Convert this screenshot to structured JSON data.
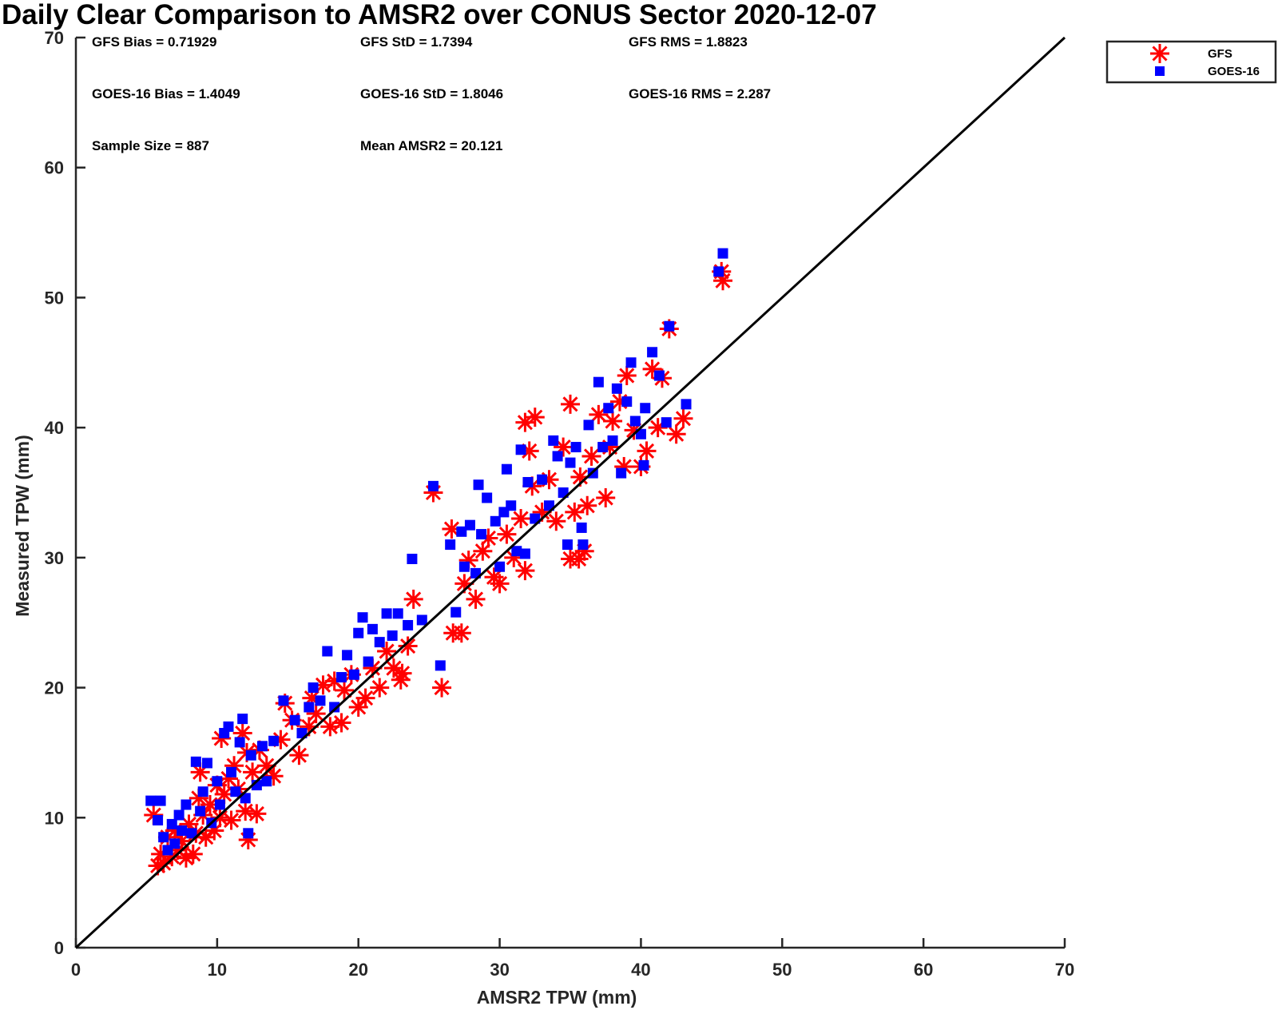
{
  "chart_data": {
    "type": "scatter",
    "title": "Daily Clear Comparison to AMSR2 over CONUS Sector 2020-12-07",
    "xlabel": "AMSR2 TPW (mm)",
    "ylabel": "Measured TPW (mm)",
    "xlim": [
      0,
      70
    ],
    "ylim": [
      0,
      70
    ],
    "xticks": [
      "0",
      "10",
      "20",
      "30",
      "40",
      "50",
      "60",
      "70"
    ],
    "yticks": [
      "0",
      "10",
      "20",
      "30",
      "40",
      "50",
      "60",
      "70"
    ],
    "grid": false,
    "legend_position": "outside top-right",
    "stats": [
      "GFS Bias = 0.71929",
      "GFS StD = 1.7394",
      "GFS RMS = 1.8823",
      "GOES-16 Bias = 1.4049",
      "GOES-16 StD = 1.8046",
      "GOES-16 RMS = 2.287",
      "Sample Size = 887",
      "Mean AMSR2 = 20.121"
    ],
    "reference_line": {
      "x": [
        0,
        70
      ],
      "y": [
        0,
        70
      ],
      "color": "#000000"
    },
    "series": [
      {
        "name": "GFS",
        "marker": "asterisk",
        "color": "#ff0000",
        "points": [
          [
            5.5,
            10.2
          ],
          [
            5.8,
            6.3
          ],
          [
            6.0,
            7.2
          ],
          [
            6.2,
            6.5
          ],
          [
            6.5,
            8.5
          ],
          [
            6.8,
            7.0
          ],
          [
            7.0,
            9.0
          ],
          [
            7.2,
            7.5
          ],
          [
            7.5,
            8.2
          ],
          [
            7.8,
            6.9
          ],
          [
            8.0,
            9.5
          ],
          [
            8.3,
            7.2
          ],
          [
            8.5,
            8.8
          ],
          [
            8.7,
            11.5
          ],
          [
            8.8,
            13.5
          ],
          [
            9.0,
            10.2
          ],
          [
            9.2,
            8.5
          ],
          [
            9.5,
            11.0
          ],
          [
            9.8,
            9.0
          ],
          [
            10.0,
            12.5
          ],
          [
            10.2,
            10.0
          ],
          [
            10.3,
            16.1
          ],
          [
            10.5,
            11.8
          ],
          [
            10.8,
            13.0
          ],
          [
            11.0,
            9.8
          ],
          [
            11.2,
            14.0
          ],
          [
            11.5,
            12.2
          ],
          [
            11.8,
            16.5
          ],
          [
            12.0,
            10.5
          ],
          [
            12.1,
            15.0
          ],
          [
            12.2,
            8.3
          ],
          [
            12.5,
            13.5
          ],
          [
            12.8,
            10.3
          ],
          [
            13.0,
            15.2
          ],
          [
            13.5,
            14.0
          ],
          [
            14.0,
            13.2
          ],
          [
            14.5,
            16.0
          ],
          [
            14.8,
            18.8
          ],
          [
            15.3,
            17.5
          ],
          [
            15.8,
            14.8
          ],
          [
            16.5,
            17.0
          ],
          [
            16.7,
            19.2
          ],
          [
            17.0,
            18.0
          ],
          [
            17.5,
            20.2
          ],
          [
            18.0,
            17.0
          ],
          [
            18.3,
            20.5
          ],
          [
            18.8,
            17.3
          ],
          [
            19.0,
            19.8
          ],
          [
            19.5,
            21.0
          ],
          [
            20.0,
            18.5
          ],
          [
            20.5,
            19.2
          ],
          [
            21.0,
            21.5
          ],
          [
            21.5,
            20.0
          ],
          [
            22.0,
            22.8
          ],
          [
            22.5,
            21.5
          ],
          [
            23.0,
            20.6
          ],
          [
            23.1,
            21.1
          ],
          [
            23.5,
            23.2
          ],
          [
            23.9,
            26.8
          ],
          [
            25.3,
            35.0
          ],
          [
            25.9,
            20.0
          ],
          [
            26.6,
            32.2
          ],
          [
            26.7,
            24.2
          ],
          [
            27.3,
            24.2
          ],
          [
            27.5,
            28.0
          ],
          [
            27.8,
            29.8
          ],
          [
            28.3,
            26.8
          ],
          [
            28.8,
            30.5
          ],
          [
            29.2,
            31.5
          ],
          [
            29.6,
            28.5
          ],
          [
            30.0,
            28.0
          ],
          [
            30.5,
            31.8
          ],
          [
            31.0,
            30.0
          ],
          [
            31.5,
            33.0
          ],
          [
            31.8,
            29.0
          ],
          [
            31.8,
            40.4
          ],
          [
            32.1,
            38.2
          ],
          [
            32.3,
            35.5
          ],
          [
            32.5,
            40.8
          ],
          [
            33.0,
            33.5
          ],
          [
            33.5,
            36.0
          ],
          [
            34.0,
            32.8
          ],
          [
            34.5,
            38.5
          ],
          [
            35.0,
            29.9
          ],
          [
            35.0,
            41.8
          ],
          [
            35.3,
            33.5
          ],
          [
            35.6,
            29.9
          ],
          [
            35.7,
            36.2
          ],
          [
            36.0,
            30.5
          ],
          [
            36.2,
            34.0
          ],
          [
            36.5,
            37.8
          ],
          [
            37.0,
            41.0
          ],
          [
            37.5,
            34.6
          ],
          [
            37.8,
            38.5
          ],
          [
            38.0,
            40.5
          ],
          [
            38.5,
            42.0
          ],
          [
            38.8,
            37.0
          ],
          [
            39.0,
            44.0
          ],
          [
            39.5,
            39.8
          ],
          [
            40.0,
            37.0
          ],
          [
            40.4,
            38.2
          ],
          [
            40.8,
            44.5
          ],
          [
            41.2,
            40.0
          ],
          [
            41.5,
            43.8
          ],
          [
            42.0,
            47.6
          ],
          [
            42.5,
            39.5
          ],
          [
            43.0,
            40.7
          ],
          [
            45.7,
            52.0
          ],
          [
            45.8,
            51.3
          ]
        ]
      },
      {
        "name": "GOES-16",
        "marker": "square",
        "color": "#0000ff",
        "points": [
          [
            5.3,
            11.3
          ],
          [
            5.8,
            9.8
          ],
          [
            6.0,
            11.3
          ],
          [
            6.2,
            8.5
          ],
          [
            6.5,
            7.5
          ],
          [
            6.8,
            9.5
          ],
          [
            7.0,
            8.0
          ],
          [
            7.3,
            10.2
          ],
          [
            7.5,
            9.0
          ],
          [
            7.8,
            11.0
          ],
          [
            8.2,
            8.8
          ],
          [
            8.5,
            14.3
          ],
          [
            8.8,
            10.5
          ],
          [
            9.0,
            12.0
          ],
          [
            9.3,
            14.2
          ],
          [
            9.6,
            9.6
          ],
          [
            10.0,
            12.8
          ],
          [
            10.2,
            11.0
          ],
          [
            10.5,
            16.5
          ],
          [
            10.8,
            17.0
          ],
          [
            11.0,
            13.5
          ],
          [
            11.3,
            12.0
          ],
          [
            11.6,
            15.8
          ],
          [
            11.8,
            17.6
          ],
          [
            12.0,
            11.5
          ],
          [
            12.2,
            8.8
          ],
          [
            12.4,
            14.8
          ],
          [
            12.8,
            12.5
          ],
          [
            13.2,
            15.5
          ],
          [
            13.5,
            12.8
          ],
          [
            14.0,
            15.9
          ],
          [
            14.7,
            19.0
          ],
          [
            15.5,
            17.5
          ],
          [
            16.0,
            16.5
          ],
          [
            16.5,
            18.5
          ],
          [
            16.8,
            20.0
          ],
          [
            17.3,
            19.0
          ],
          [
            17.8,
            22.8
          ],
          [
            18.3,
            18.5
          ],
          [
            18.8,
            20.8
          ],
          [
            19.2,
            22.5
          ],
          [
            19.7,
            21.0
          ],
          [
            20.0,
            24.2
          ],
          [
            20.3,
            25.4
          ],
          [
            20.7,
            22.0
          ],
          [
            21.0,
            24.5
          ],
          [
            21.5,
            23.5
          ],
          [
            22.0,
            25.7
          ],
          [
            22.4,
            24.0
          ],
          [
            22.8,
            25.7
          ],
          [
            23.5,
            24.8
          ],
          [
            23.8,
            29.9
          ],
          [
            24.5,
            25.2
          ],
          [
            25.3,
            35.5
          ],
          [
            25.8,
            21.7
          ],
          [
            26.5,
            31.0
          ],
          [
            26.9,
            25.8
          ],
          [
            27.3,
            32.0
          ],
          [
            27.5,
            29.3
          ],
          [
            27.9,
            32.5
          ],
          [
            28.3,
            28.8
          ],
          [
            28.5,
            35.6
          ],
          [
            28.7,
            31.8
          ],
          [
            29.1,
            34.6
          ],
          [
            29.7,
            32.8
          ],
          [
            30.0,
            29.3
          ],
          [
            30.3,
            33.5
          ],
          [
            30.5,
            36.8
          ],
          [
            30.8,
            34.0
          ],
          [
            31.2,
            30.5
          ],
          [
            31.5,
            38.3
          ],
          [
            31.8,
            30.3
          ],
          [
            32.0,
            35.8
          ],
          [
            32.5,
            33.0
          ],
          [
            33.0,
            36.0
          ],
          [
            33.5,
            34.0
          ],
          [
            33.8,
            39.0
          ],
          [
            34.1,
            37.8
          ],
          [
            34.5,
            35.0
          ],
          [
            34.8,
            31.0
          ],
          [
            35.0,
            37.3
          ],
          [
            35.4,
            38.5
          ],
          [
            35.8,
            32.3
          ],
          [
            35.9,
            31.0
          ],
          [
            36.3,
            40.2
          ],
          [
            36.6,
            36.5
          ],
          [
            37.0,
            43.5
          ],
          [
            37.3,
            38.5
          ],
          [
            37.7,
            41.5
          ],
          [
            38.0,
            39.0
          ],
          [
            38.3,
            43.0
          ],
          [
            38.6,
            36.5
          ],
          [
            39.0,
            42.0
          ],
          [
            39.3,
            45.0
          ],
          [
            39.6,
            40.5
          ],
          [
            40.0,
            39.5
          ],
          [
            40.3,
            41.5
          ],
          [
            40.8,
            45.8
          ],
          [
            41.3,
            44.0
          ],
          [
            41.8,
            40.4
          ],
          [
            42.0,
            47.8
          ],
          [
            43.2,
            41.8
          ],
          [
            45.8,
            53.4
          ],
          [
            45.5,
            52.0
          ],
          [
            40.2,
            37.1
          ]
        ]
      }
    ]
  }
}
